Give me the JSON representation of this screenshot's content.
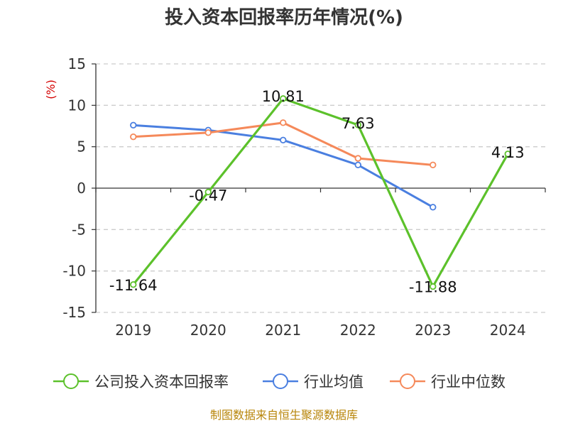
{
  "chart_data": {
    "type": "line",
    "title": "投入资本回报率历年情况(%)",
    "ylabel": "(%)",
    "xlabel": "",
    "ylim": [
      -15,
      15
    ],
    "yticks": [
      15,
      10,
      5,
      0,
      -5,
      -10,
      -15
    ],
    "categories": [
      "2019",
      "2020",
      "2021",
      "2022",
      "2023",
      "2024"
    ],
    "grid": true,
    "legend_position": "bottom",
    "series": [
      {
        "name": "公司投入资本回报率",
        "color": "#5cc12b",
        "values": [
          -11.64,
          -0.47,
          10.81,
          7.63,
          -11.88,
          4.13
        ],
        "labels": [
          "-11.64",
          "-0.47",
          "10.81",
          "7.63",
          "-11.88",
          "4.13"
        ]
      },
      {
        "name": "行业均值",
        "color": "#4a7fe0",
        "values": [
          7.6,
          7.0,
          5.8,
          2.8,
          -2.3,
          null
        ]
      },
      {
        "name": "行业中位数",
        "color": "#f5895a",
        "values": [
          6.2,
          6.7,
          7.9,
          3.6,
          2.8,
          null
        ]
      }
    ]
  },
  "source": "制图数据来自恒生聚源数据库"
}
